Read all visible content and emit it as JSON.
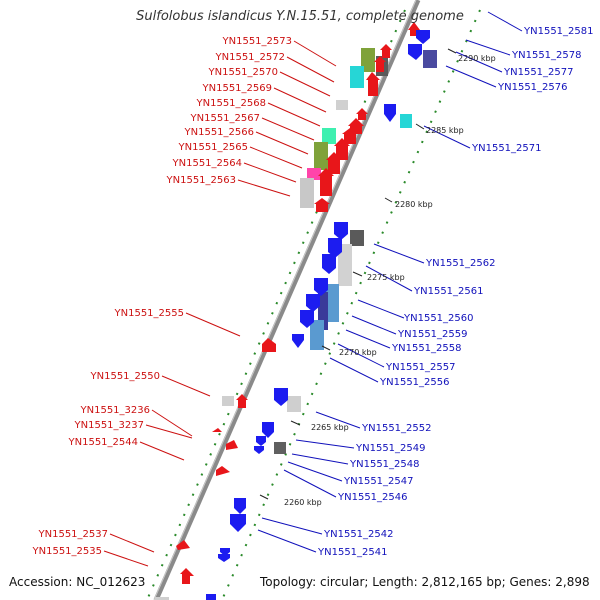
{
  "title": "Sulfolobus islandicus Y.N.15.51, complete genome",
  "footer": {
    "accession": "Accession: NC_012623",
    "summary": "Topology: circular; Length: 2,812,165 bp; Genes: 2,898"
  },
  "colors": {
    "forward": "#e8161a",
    "reverse": "#1c1cf0",
    "backbone": "#8a8a8a",
    "tick": "#2a8a2a",
    "label_left": "#cc1111",
    "label_right": "#1111bb"
  },
  "kbp_marks": [
    "2290 kbp",
    "2285 kbp",
    "2280 kbp",
    "2275 kbp",
    "2270 kbp",
    "2265 kbp",
    "2260 kbp"
  ],
  "left_labels": [
    "YN1551_2573",
    "YN1551_2572",
    "YN1551_2570",
    "YN1551_2569",
    "YN1551_2568",
    "YN1551_2567",
    "YN1551_2566",
    "YN1551_2565",
    "YN1551_2564",
    "YN1551_2563",
    "YN1551_2555",
    "YN1551_2550",
    "YN1551_3236",
    "YN1551_3237",
    "YN1551_2544",
    "YN1551_2537",
    "YN1551_2535"
  ],
  "right_labels": [
    "YN1551_2581",
    "YN1551_2578",
    "YN1551_2577",
    "YN1551_2576",
    "YN1551_2571",
    "YN1551_2562",
    "YN1551_2561",
    "YN1551_2560",
    "YN1551_2559",
    "YN1551_2558",
    "YN1551_2557",
    "YN1551_2556",
    "YN1551_2552",
    "YN1551_2549",
    "YN1551_2548",
    "YN1551_2547",
    "YN1551_2546",
    "YN1551_2542",
    "YN1551_2541"
  ]
}
